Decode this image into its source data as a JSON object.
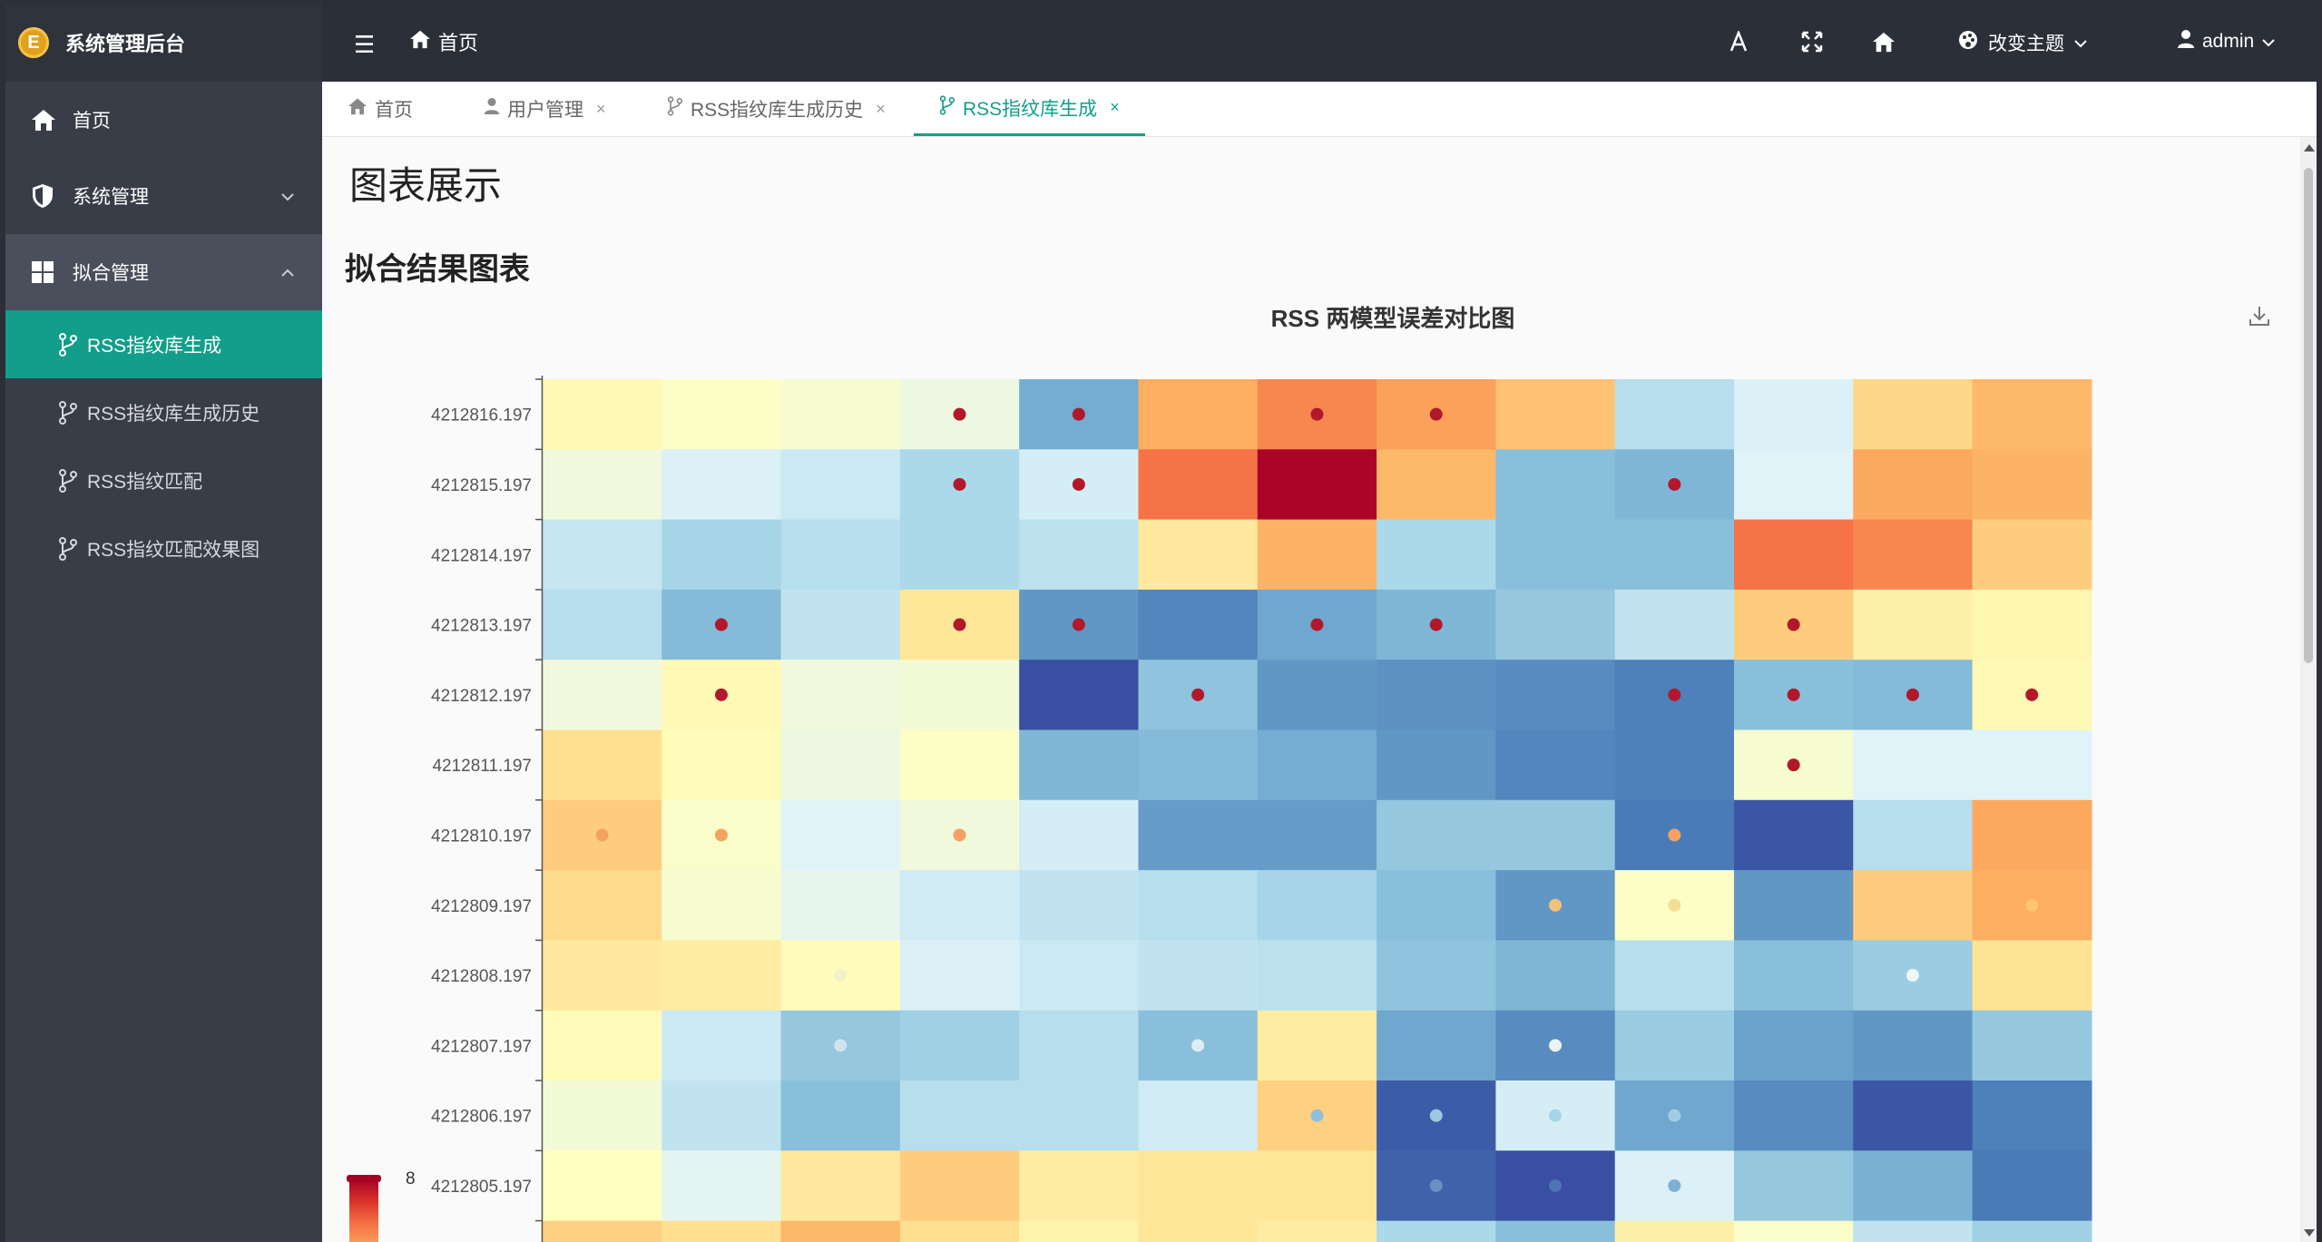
{
  "app": {
    "title": "系统管理后台",
    "logo_letter": "E"
  },
  "header": {
    "breadcrumb": "首页",
    "theme_label": "改变主题",
    "user": "admin"
  },
  "sidebar": {
    "items": [
      {
        "label": "首页",
        "icon": "home-icon"
      },
      {
        "label": "系统管理",
        "icon": "shield-icon"
      },
      {
        "label": "拟合管理",
        "icon": "grid-icon"
      }
    ],
    "subitems": [
      {
        "label": "RSS指纹库生成",
        "active": true
      },
      {
        "label": "RSS指纹库生成历史",
        "active": false
      },
      {
        "label": "RSS指纹匹配",
        "active": false
      },
      {
        "label": "RSS指纹匹配效果图",
        "active": false
      }
    ]
  },
  "tabs": [
    {
      "label": "首页",
      "closable": false
    },
    {
      "label": "用户管理",
      "closable": true
    },
    {
      "label": "RSS指纹库生成历史",
      "closable": true
    },
    {
      "label": "RSS指纹库生成",
      "closable": true,
      "active": true
    }
  ],
  "close_glyph": "×",
  "page": {
    "title": "图表展示",
    "section": "拟合结果图表"
  },
  "chart_data": {
    "type": "heatmap",
    "title": "RSS 两模型误差对比图",
    "y_categories": [
      "4212816.197",
      "4212815.197",
      "4212814.197",
      "4212813.197",
      "4212812.197",
      "4212811.197",
      "4212810.197",
      "4212809.197",
      "4212808.197",
      "4212807.197",
      "4212806.197",
      "4212805.197"
    ],
    "x_count": 13,
    "visual_map": {
      "max_label": "8",
      "colors": [
        "#313695",
        "#4575b4",
        "#74add1",
        "#abd9e9",
        "#e0f3f8",
        "#ffffbf",
        "#fee090",
        "#fdae61",
        "#f46d43",
        "#d73027",
        "#a50026"
      ]
    },
    "values": [
      [
        5.2,
        4.9,
        4.7,
        4.4,
        2.0,
        7.0,
        7.6,
        7.2,
        6.6,
        3.2,
        3.9,
        6.2,
        6.8
      ],
      [
        4.5,
        3.9,
        3.6,
        3.0,
        3.8,
        7.9,
        9.9,
        6.8,
        2.4,
        2.2,
        4.0,
        7.1,
        6.9
      ],
      [
        3.5,
        2.9,
        3.2,
        3.0,
        3.3,
        5.7,
        6.9,
        3.0,
        2.4,
        2.4,
        7.9,
        7.6,
        6.4
      ],
      [
        3.2,
        2.3,
        3.4,
        5.8,
        1.6,
        1.3,
        1.9,
        2.2,
        2.6,
        3.4,
        6.4,
        5.5,
        5.3
      ],
      [
        4.5,
        5.2,
        4.5,
        4.6,
        0.4,
        2.5,
        1.6,
        1.5,
        1.4,
        1.2,
        2.4,
        2.3,
        5.2
      ],
      [
        6.0,
        5.1,
        4.4,
        4.9,
        2.2,
        2.3,
        2.0,
        1.6,
        1.3,
        1.2,
        4.7,
        4.0,
        4.0
      ],
      [
        6.4,
        4.8,
        4.0,
        4.5,
        3.8,
        1.7,
        1.7,
        2.6,
        2.6,
        1.1,
        0.5,
        3.2,
        7.1
      ],
      [
        6.1,
        4.7,
        4.2,
        3.7,
        3.4,
        3.2,
        2.9,
        2.4,
        1.6,
        4.9,
        1.6,
        6.4,
        7.0
      ],
      [
        5.7,
        5.6,
        5.1,
        3.9,
        3.6,
        3.4,
        3.3,
        2.5,
        2.2,
        3.2,
        2.4,
        2.7,
        5.9
      ],
      [
        5.1,
        3.6,
        2.6,
        2.8,
        3.2,
        2.4,
        5.6,
        1.9,
        1.4,
        2.7,
        1.8,
        1.6,
        2.6
      ],
      [
        4.6,
        3.4,
        2.4,
        3.2,
        3.2,
        3.7,
        6.3,
        0.6,
        3.8,
        1.9,
        1.4,
        0.5,
        1.2
      ],
      [
        5.0,
        4.1,
        5.7,
        6.4,
        5.6,
        5.8,
        5.8,
        0.7,
        0.4,
        3.9,
        2.6,
        2.1,
        1.1
      ]
    ],
    "markers": [
      [
        3,
        0,
        "#b2182b"
      ],
      [
        4,
        0,
        "#b2182b"
      ],
      [
        6,
        0,
        "#b2182b"
      ],
      [
        7,
        0,
        "#b2182b"
      ],
      [
        3,
        1,
        "#b2182b"
      ],
      [
        4,
        1,
        "#b2182b"
      ],
      [
        9,
        1,
        "#b2182b"
      ],
      [
        1,
        3,
        "#b2182b"
      ],
      [
        3,
        3,
        "#b2182b"
      ],
      [
        4,
        3,
        "#b2182b"
      ],
      [
        6,
        3,
        "#b2182b"
      ],
      [
        7,
        3,
        "#b2182b"
      ],
      [
        10,
        3,
        "#b2182b"
      ],
      [
        1,
        4,
        "#b2182b"
      ],
      [
        5,
        4,
        "#b2182b"
      ],
      [
        9,
        4,
        "#b2182b"
      ],
      [
        10,
        4,
        "#b2182b"
      ],
      [
        11,
        4,
        "#b2182b"
      ],
      [
        12,
        4,
        "#b2182b"
      ],
      [
        10,
        5,
        "#b2182b"
      ],
      [
        0,
        6,
        "#f4a261"
      ],
      [
        1,
        6,
        "#f4a261"
      ],
      [
        3,
        6,
        "#f4a261"
      ],
      [
        9,
        6,
        "#f4a261"
      ],
      [
        8,
        7,
        "#f2c27a"
      ],
      [
        9,
        7,
        "#f6df90"
      ],
      [
        12,
        7,
        "#fdc76e"
      ],
      [
        2,
        8,
        "#f2f2c8"
      ],
      [
        11,
        8,
        "#eef6f8"
      ],
      [
        2,
        9,
        "#cfe5ee"
      ],
      [
        5,
        9,
        "#dbeef5"
      ],
      [
        8,
        9,
        "#eaf4f8"
      ],
      [
        6,
        10,
        "#8fbfdc"
      ],
      [
        7,
        10,
        "#9cc9e0"
      ],
      [
        8,
        10,
        "#a8d4e8"
      ],
      [
        9,
        10,
        "#a0cde4"
      ],
      [
        7,
        11,
        "#6a8fc2"
      ],
      [
        8,
        11,
        "#4d74b3"
      ],
      [
        9,
        11,
        "#7fb0d4"
      ]
    ]
  }
}
